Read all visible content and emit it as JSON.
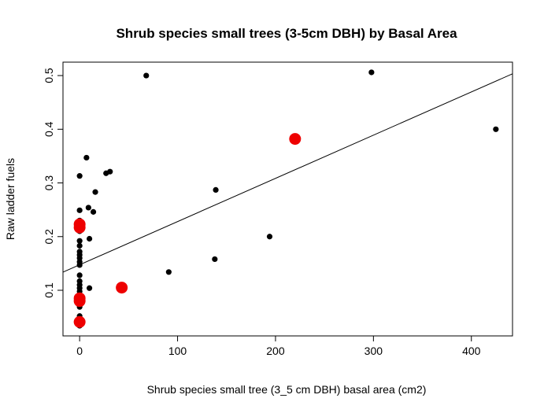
{
  "chart_data": {
    "type": "scatter",
    "title": "Shrub species small trees (3-5cm DBH) by Basal Area",
    "xlabel": "Shrub species small tree (3_5 cm DBH) basal area (cm2)",
    "ylabel": "Raw ladder fuels",
    "xlim": [
      -17,
      442
    ],
    "ylim": [
      0.015,
      0.525
    ],
    "x_ticks": [
      0,
      100,
      200,
      300,
      400
    ],
    "y_ticks": [
      0.1,
      0.2,
      0.3,
      0.4,
      0.5
    ],
    "x_tick_labels": [
      "0",
      "100",
      "200",
      "300",
      "400"
    ],
    "y_tick_labels": [
      "0.1",
      "0.2",
      "0.3",
      "0.4",
      "0.5"
    ],
    "grid": false,
    "legend": "none",
    "colors": {
      "black_points": "#000000",
      "red_points": "#ee0000",
      "fit_line": "#000000"
    },
    "series": [
      {
        "marker": "small-black-dot",
        "color": "#000000",
        "points": [
          [
            68,
            0.5
          ],
          [
            298,
            0.506
          ],
          [
            425,
            0.4
          ],
          [
            7,
            0.347
          ],
          [
            0,
            0.313
          ],
          [
            27,
            0.318
          ],
          [
            31,
            0.321
          ],
          [
            16,
            0.283
          ],
          [
            139,
            0.287
          ],
          [
            0,
            0.249
          ],
          [
            9,
            0.254
          ],
          [
            14,
            0.246
          ],
          [
            0,
            0.23
          ],
          [
            0,
            0.21
          ],
          [
            0,
            0.192
          ],
          [
            0,
            0.183
          ],
          [
            10,
            0.196
          ],
          [
            194,
            0.2
          ],
          [
            0,
            0.172
          ],
          [
            0,
            0.166
          ],
          [
            0,
            0.16
          ],
          [
            0,
            0.153
          ],
          [
            0,
            0.147
          ],
          [
            138,
            0.158
          ],
          [
            91,
            0.134
          ],
          [
            0,
            0.128
          ],
          [
            0,
            0.117
          ],
          [
            0,
            0.11
          ],
          [
            0,
            0.104
          ],
          [
            0,
            0.098
          ],
          [
            10,
            0.104
          ],
          [
            0,
            0.09
          ],
          [
            0,
            0.085
          ],
          [
            0,
            0.074
          ],
          [
            0,
            0.069
          ],
          [
            0,
            0.052
          ],
          [
            0,
            0.045
          ],
          [
            0,
            0.034
          ]
        ]
      },
      {
        "marker": "large-red-dot",
        "color": "#ee0000",
        "points": [
          [
            0,
            0.223
          ],
          [
            0,
            0.217
          ],
          [
            220,
            0.382
          ],
          [
            43,
            0.105
          ],
          [
            0,
            0.085
          ],
          [
            0,
            0.08
          ],
          [
            0,
            0.041
          ]
        ]
      }
    ],
    "fit_line": {
      "intercept": 0.1475,
      "slope": 0.000805
    }
  }
}
